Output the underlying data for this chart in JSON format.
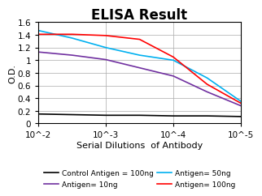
{
  "title": "ELISA Result",
  "ylabel": "O.D.",
  "xlabel": "Serial Dilutions  of Antibody",
  "xlim": [
    0.01,
    1e-05
  ],
  "ylim": [
    0,
    1.6
  ],
  "yticks": [
    0,
    0.2,
    0.4,
    0.6,
    0.8,
    1.0,
    1.2,
    1.4,
    1.6
  ],
  "ytick_labels": [
    "0",
    "0.2",
    "0.4",
    "0.6",
    "0.8",
    "1",
    "1.2",
    "1.4",
    "1.6"
  ],
  "xtick_positions": [
    0.01,
    0.001,
    0.0001,
    1e-05
  ],
  "xtick_labels": [
    "10^-2",
    "10^-3",
    "10^-4",
    "10^-5"
  ],
  "lines": [
    {
      "label": "Control Antigen = 100ng",
      "color": "#000000",
      "x": [
        0.01,
        0.003162,
        0.001,
        0.0003162,
        0.0001,
        3.162e-05,
        1e-05
      ],
      "y": [
        0.15,
        0.14,
        0.13,
        0.13,
        0.12,
        0.12,
        0.11
      ]
    },
    {
      "label": "Antigen= 10ng",
      "color": "#7030A0",
      "x": [
        0.01,
        0.003162,
        0.001,
        0.0003162,
        0.0001,
        3.162e-05,
        1e-05
      ],
      "y": [
        1.13,
        1.08,
        1.01,
        0.88,
        0.75,
        0.5,
        0.28
      ]
    },
    {
      "label": "Antigen= 50ng",
      "color": "#00B0F0",
      "x": [
        0.01,
        0.003162,
        0.001,
        0.0003162,
        0.0001,
        3.162e-05,
        1e-05
      ],
      "y": [
        1.47,
        1.35,
        1.2,
        1.08,
        1.0,
        0.72,
        0.35
      ]
    },
    {
      "label": "Antigen= 100ng",
      "color": "#FF0000",
      "x": [
        0.01,
        0.003162,
        0.001,
        0.0003162,
        0.0001,
        3.162e-05,
        1e-05
      ],
      "y": [
        1.41,
        1.41,
        1.39,
        1.33,
        1.05,
        0.62,
        0.32
      ]
    }
  ],
  "legend_ncol": 2,
  "background_color": "#ffffff",
  "grid_color": "#aaaaaa",
  "title_fontsize": 12,
  "label_fontsize": 8,
  "tick_fontsize": 7.5,
  "legend_fontsize": 6.5
}
